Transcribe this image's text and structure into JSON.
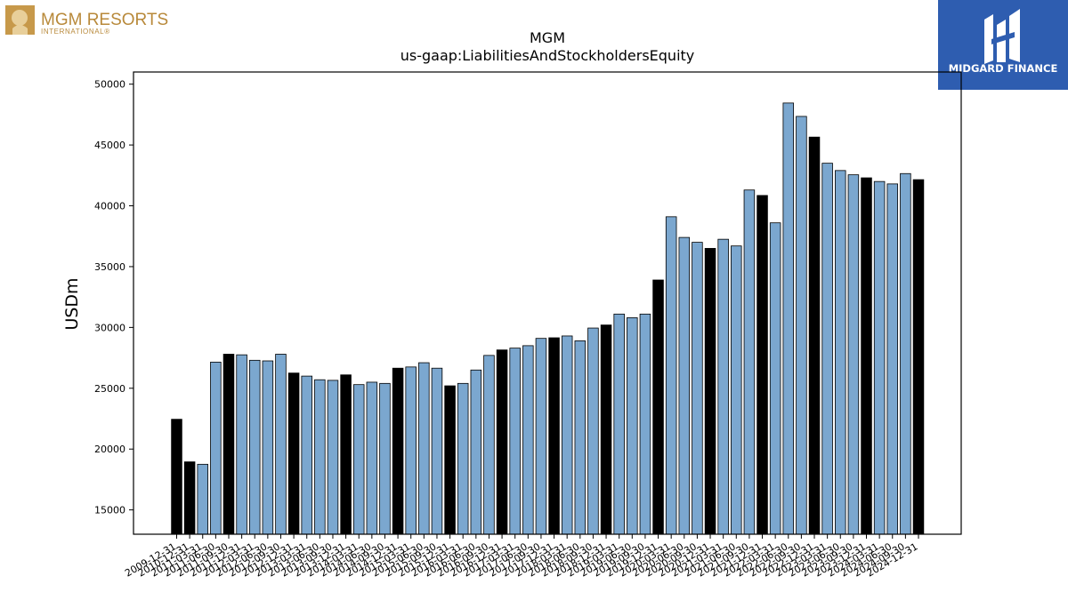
{
  "logos": {
    "left_text": "MGM RESORTS",
    "left_subtext": "INTERNATIONAL®",
    "right_text": "MIDGARD FINANCE"
  },
  "colors": {
    "bar_light": "#7ba7cf",
    "bar_dark": "#000000",
    "logo_gold": "#b8893a",
    "logo_blue": "#2e5db0"
  },
  "chart_data": {
    "type": "bar",
    "title": "MGM",
    "subtitle": "us-gaap:LiabilitiesAndStockholdersEquity",
    "ylabel": "USDm",
    "xlabel": "",
    "ylim": [
      13000,
      51000
    ],
    "yticks": [
      15000,
      20000,
      25000,
      30000,
      35000,
      40000,
      45000,
      50000
    ],
    "grid": false,
    "categories": [
      "2009-12-31",
      "2010-12-31",
      "2011-03-31",
      "2011-06-30",
      "2011-09-30",
      "2011-12-31",
      "2012-03-31",
      "2012-06-30",
      "2012-09-30",
      "2012-12-31",
      "2013-03-31",
      "2013-06-30",
      "2013-09-30",
      "2013-12-31",
      "2014-03-31",
      "2014-06-30",
      "2014-09-30",
      "2014-12-31",
      "2015-03-31",
      "2015-06-30",
      "2015-09-30",
      "2015-12-31",
      "2016-03-31",
      "2016-06-30",
      "2016-09-30",
      "2016-12-31",
      "2017-03-31",
      "2017-06-30",
      "2017-09-30",
      "2017-12-31",
      "2018-03-31",
      "2018-06-30",
      "2018-09-30",
      "2018-12-31",
      "2019-03-31",
      "2019-06-30",
      "2019-09-30",
      "2019-12-31",
      "2020-03-31",
      "2020-06-30",
      "2020-09-30",
      "2020-12-31",
      "2021-03-31",
      "2021-06-30",
      "2021-09-30",
      "2021-12-31",
      "2022-03-31",
      "2022-06-30",
      "2022-09-30",
      "2022-12-31",
      "2023-03-31",
      "2023-06-30",
      "2023-09-30",
      "2023-12-31",
      "2024-03-31",
      "2024-06-30",
      "2024-09-30",
      "2024-12-31"
    ],
    "values": [
      22450,
      18950,
      18750,
      27150,
      27800,
      27750,
      27300,
      27250,
      27800,
      26250,
      26000,
      25700,
      25650,
      26100,
      25300,
      25500,
      25400,
      26650,
      26750,
      27100,
      26650,
      25200,
      25400,
      26500,
      27700,
      28150,
      28300,
      28500,
      29100,
      29150,
      29300,
      28900,
      29950,
      30200,
      31100,
      30800,
      31100,
      33900,
      39100,
      37400,
      37000,
      36500,
      37250,
      36700,
      41300,
      40850,
      38600,
      48450,
      47350,
      45650,
      43500,
      42900,
      42550,
      42300,
      42000,
      41800,
      42650,
      42150
    ],
    "dark_bars": [
      0,
      1,
      4,
      9,
      13,
      17,
      21,
      25,
      29,
      33,
      37,
      41,
      45,
      49,
      53,
      57
    ]
  }
}
